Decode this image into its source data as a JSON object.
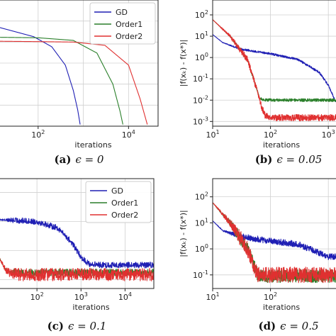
{
  "chart_data": [
    {
      "id": "a",
      "type": "line",
      "caption_letter": "(a)",
      "caption_eq": "ϵ = 0",
      "xlabel": "iterations",
      "ylabel": "",
      "xscale": "log",
      "yscale": "log",
      "xlim": [
        10,
        45000
      ],
      "ylim": [
        0.001,
        1000
      ],
      "xticks": [
        {
          "value": 100,
          "base": "10",
          "exp": "2"
        },
        {
          "value": 10000,
          "base": "10",
          "exp": "4"
        }
      ],
      "yticks": [],
      "grid": true,
      "legend": "top-right",
      "series": [
        {
          "name": "GD",
          "color": "#1f1fb4",
          "noise": 0,
          "x": [
            10,
            80,
            200,
            400,
            600,
            750,
            850
          ],
          "y": [
            60,
            18,
            6,
            0.8,
            0.05,
            0.006,
            0.0012
          ]
        },
        {
          "name": "Order1",
          "color": "#2a7f2a",
          "noise": 0,
          "x": [
            10,
            100,
            600,
            2000,
            4500,
            6500,
            7500
          ],
          "y": [
            17,
            16,
            12,
            3,
            0.1,
            0.005,
            0.0012
          ]
        },
        {
          "name": "Order2",
          "color": "#e03030",
          "noise": 0,
          "x": [
            10,
            100,
            600,
            3000,
            10000,
            18000,
            26000
          ],
          "y": [
            11,
            10.5,
            10,
            7,
            0.8,
            0.02,
            0.0012
          ]
        }
      ]
    },
    {
      "id": "b",
      "type": "line",
      "caption_letter": "(b)",
      "caption_eq": "ϵ = 0.05",
      "xlabel": "iterations",
      "ylabel": "|f(xₖ) - f(x*)|",
      "xscale": "log",
      "yscale": "log",
      "xlim": [
        10,
        1800
      ],
      "ylim": [
        0.0006,
        500
      ],
      "xticks": [
        {
          "value": 10,
          "base": "10",
          "exp": "1"
        },
        {
          "value": 100,
          "base": "10",
          "exp": "2"
        },
        {
          "value": 1000,
          "base": "10",
          "exp": "3"
        }
      ],
      "yticks": [
        {
          "value": 100,
          "base": "10",
          "exp": "2"
        },
        {
          "value": 10,
          "base": "10",
          "exp": "1"
        },
        {
          "value": 1,
          "base": "10",
          "exp": "0"
        },
        {
          "value": 0.1,
          "base": "10",
          "exp": "-1"
        },
        {
          "value": 0.01,
          "base": "10",
          "exp": "-2"
        },
        {
          "value": 0.001,
          "base": "10",
          "exp": "-3"
        }
      ],
      "grid": true,
      "legend": "none",
      "series": [
        {
          "name": "GD",
          "color": "#1f1fb4",
          "noise": 0.05,
          "x": [
            10,
            15,
            30,
            100,
            300,
            700,
            1000,
            1300,
            1800
          ],
          "y": [
            12,
            5,
            2.5,
            1.5,
            0.8,
            0.2,
            0.05,
            0.01,
            0.004
          ]
        },
        {
          "name": "Order1",
          "color": "#2a7f2a",
          "noise": 0.07,
          "x": [
            10,
            20,
            40,
            55,
            65,
            80,
            300,
            1000,
            1800
          ],
          "y": [
            60,
            10,
            0.8,
            0.05,
            0.012,
            0.01,
            0.01,
            0.01,
            0.01
          ]
        },
        {
          "name": "Order2",
          "color": "#e03030",
          "noise": 0.15,
          "x": [
            10,
            20,
            40,
            55,
            70,
            80,
            100,
            300,
            1000,
            1800
          ],
          "y": [
            60,
            10,
            0.8,
            0.05,
            0.005,
            0.002,
            0.0015,
            0.0015,
            0.0015,
            0.0015
          ]
        }
      ]
    },
    {
      "id": "c",
      "type": "line",
      "caption_letter": "(c)",
      "caption_eq": "ϵ = 0.1",
      "xlabel": "iterations",
      "ylabel": "",
      "xscale": "log",
      "yscale": "log",
      "xlim": [
        10,
        45000
      ],
      "ylim": [
        0.05,
        300
      ],
      "xticks": [
        {
          "value": 100,
          "base": "10",
          "exp": "2"
        },
        {
          "value": 1000,
          "base": "10",
          "exp": "3"
        },
        {
          "value": 10000,
          "base": "10",
          "exp": "4"
        }
      ],
      "yticks": [],
      "grid": true,
      "legend": "top-right",
      "series": [
        {
          "name": "GD",
          "color": "#1f1fb4",
          "noise": 0.1,
          "x": [
            10,
            100,
            300,
            600,
            1000,
            1500,
            3000,
            45000
          ],
          "y": [
            12,
            10,
            6,
            2,
            0.6,
            0.35,
            0.32,
            0.32
          ]
        },
        {
          "name": "Order1",
          "color": "#2a7f2a",
          "noise": 0.12,
          "x": [
            10,
            20,
            30,
            45000
          ],
          "y": [
            1.5,
            0.2,
            0.18,
            0.18
          ]
        },
        {
          "name": "Order2",
          "color": "#e03030",
          "noise": 0.22,
          "x": [
            10,
            20,
            30,
            45000
          ],
          "y": [
            1.5,
            0.2,
            0.15,
            0.15
          ]
        }
      ]
    },
    {
      "id": "d",
      "type": "line",
      "caption_letter": "(d)",
      "caption_eq": "ϵ = 0.5",
      "xlabel": "iterations",
      "ylabel": "|f(xₖ) - f(x*)|",
      "xscale": "log",
      "yscale": "log",
      "xlim": [
        10,
        1800
      ],
      "ylim": [
        0.03,
        500
      ],
      "xticks": [
        {
          "value": 10,
          "base": "10",
          "exp": "1"
        },
        {
          "value": 100,
          "base": "10",
          "exp": "2"
        }
      ],
      "yticks": [
        {
          "value": 100,
          "base": "10",
          "exp": "2"
        },
        {
          "value": 10,
          "base": "10",
          "exp": "1"
        },
        {
          "value": 1,
          "base": "10",
          "exp": "0"
        },
        {
          "value": 0.1,
          "base": "10",
          "exp": "-1"
        }
      ],
      "grid": true,
      "legend": "none",
      "series": [
        {
          "name": "GD",
          "color": "#1f1fb4",
          "noise": 0.12,
          "x": [
            10,
            15,
            30,
            100,
            300,
            700,
            1000,
            1800
          ],
          "y": [
            12,
            5,
            3,
            2,
            1.5,
            0.7,
            0.5,
            0.5
          ]
        },
        {
          "name": "Order1",
          "color": "#2a7f2a",
          "noise": 0.25,
          "x": [
            10,
            20,
            40,
            60,
            80,
            1800
          ],
          "y": [
            60,
            10,
            1,
            0.1,
            0.09,
            0.09
          ]
        },
        {
          "name": "Order2",
          "color": "#e03030",
          "noise": 0.3,
          "x": [
            10,
            20,
            40,
            60,
            80,
            1800
          ],
          "y": [
            60,
            10,
            1,
            0.1,
            0.1,
            0.1
          ]
        }
      ]
    }
  ]
}
